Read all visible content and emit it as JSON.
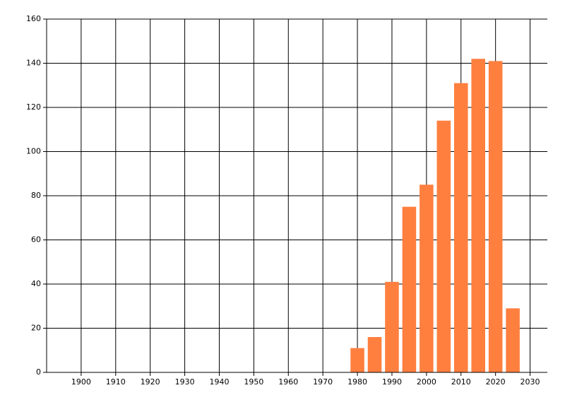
{
  "chart_data": {
    "type": "bar",
    "x": [
      1980,
      1985,
      1990,
      1995,
      2000,
      2005,
      2010,
      2015,
      2020,
      2025
    ],
    "values": [
      11,
      16,
      41,
      75,
      85,
      114,
      131,
      142,
      141,
      29
    ],
    "color": "#ff7f3f",
    "xlim": [
      1890,
      2035
    ],
    "xticks": [
      1900,
      1910,
      1920,
      1930,
      1940,
      1950,
      1960,
      1970,
      1980,
      1990,
      2000,
      2010,
      2020,
      2030
    ],
    "ylim": [
      0,
      160
    ],
    "yticks": [
      0,
      20,
      40,
      60,
      80,
      100,
      120,
      140,
      160
    ],
    "grid": true
  }
}
